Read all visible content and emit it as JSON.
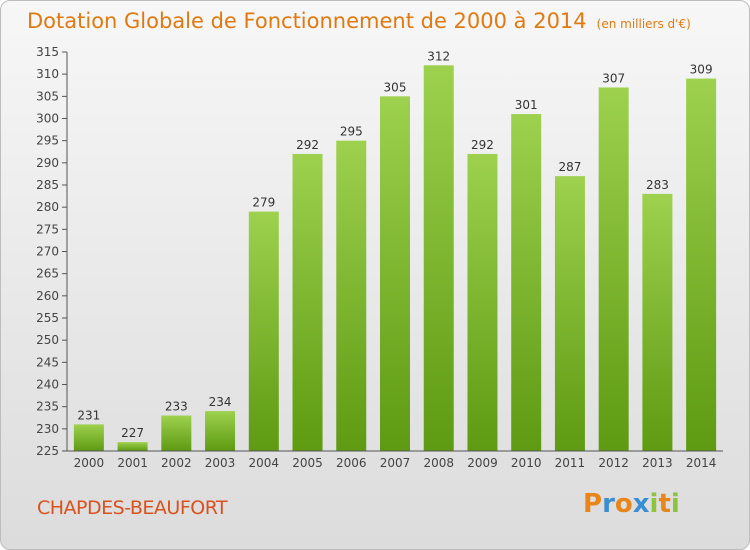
{
  "header": {
    "title": "Dotation Globale de Fonctionnement de 2000 à 2014",
    "subtitle": "(en milliers d'€)"
  },
  "footer": {
    "commune": "CHAPDES-BEAUFORT",
    "brand": [
      "P",
      "r",
      "o",
      "x",
      "i",
      "t",
      "i"
    ]
  },
  "colors": {
    "bar_top": "#9dd14e",
    "bar_bottom": "#5e9a12",
    "title": "#e07a10",
    "commune": "#d9521e",
    "brand": [
      "#e8851b",
      "#3a8fd0",
      "#e8851b",
      "#3a8fd0",
      "#8cc43e",
      "#e8851b",
      "#8cc43e"
    ]
  },
  "chart_data": {
    "type": "bar",
    "title": "Dotation Globale de Fonctionnement de 2000 à 2014",
    "subtitle": "(en milliers d'€)",
    "categories": [
      "2000",
      "2001",
      "2002",
      "2003",
      "2004",
      "2005",
      "2006",
      "2007",
      "2008",
      "2009",
      "2010",
      "2011",
      "2012",
      "2013",
      "2014"
    ],
    "values": [
      231,
      227,
      233,
      234,
      279,
      292,
      295,
      305,
      312,
      292,
      301,
      287,
      307,
      283,
      309
    ],
    "ylim": [
      225,
      315
    ],
    "yticks": [
      225,
      230,
      235,
      240,
      245,
      250,
      255,
      260,
      265,
      270,
      275,
      280,
      285,
      290,
      295,
      300,
      305,
      310,
      315
    ],
    "grid": false,
    "data_labels": true
  }
}
